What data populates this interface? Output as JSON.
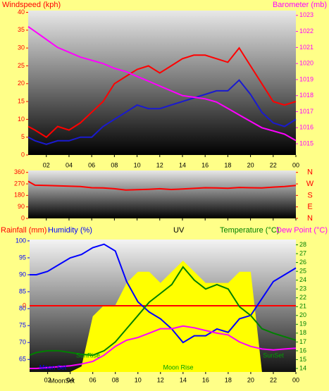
{
  "chart_data": [
    {
      "type": "line",
      "y_label": "Windspeed (kph)",
      "y2_label": "Barometer (mb)",
      "x": [
        0.4,
        1,
        2,
        3,
        4,
        5,
        6,
        7,
        8,
        9,
        10,
        11,
        12,
        13,
        14,
        15,
        16,
        17,
        18,
        19,
        20,
        21,
        22,
        23,
        24
      ],
      "xlim": [
        0.4,
        24
      ],
      "xticks": [
        {
          "value": 2,
          "label": "02"
        },
        {
          "value": 4,
          "label": "04"
        },
        {
          "value": 6,
          "label": "06"
        },
        {
          "value": 8,
          "label": "08"
        },
        10,
        12,
        14,
        16,
        18,
        20,
        22,
        {
          "value": 24,
          "label": "00"
        }
      ],
      "ylim": [
        0,
        40.5
      ],
      "yticks": [
        0,
        5,
        10,
        15,
        20,
        25,
        30,
        35,
        40
      ],
      "y2lim": [
        1014.3,
        1023.3
      ],
      "y2ticks": [
        1015,
        1016,
        1017,
        1018,
        1019,
        1020,
        1021,
        1022,
        1023
      ],
      "series": [
        {
          "color": "#ff0000",
          "axis": "y",
          "values": [
            8,
            7,
            5,
            8,
            7,
            9,
            12,
            15,
            20,
            22,
            24,
            25,
            23,
            25,
            27,
            28,
            28,
            27,
            26,
            30,
            25,
            20,
            15,
            14,
            15
          ]
        },
        {
          "color": "#1a1ad0",
          "axis": "y",
          "values": [
            5,
            4,
            3,
            4,
            4,
            5,
            5,
            8,
            10,
            12,
            14,
            13,
            13,
            14,
            15,
            16,
            17,
            18,
            18,
            21,
            17,
            12,
            9,
            8,
            10
          ]
        },
        {
          "color": "#ff00ff",
          "axis": "y2",
          "values": [
            1022.3,
            1022,
            1021.5,
            1021,
            1020.7,
            1020.4,
            1020.2,
            1020,
            1019.7,
            1019.5,
            1019.2,
            1018.9,
            1018.6,
            1018.3,
            1018,
            1017.9,
            1017.8,
            1017.6,
            1017.2,
            1016.8,
            1016.4,
            1016,
            1015.8,
            1015.6,
            1015.2
          ]
        }
      ]
    },
    {
      "type": "line",
      "x": [
        0.4,
        1,
        2,
        3,
        4,
        5,
        6,
        7,
        8,
        9,
        10,
        11,
        12,
        13,
        14,
        15,
        16,
        17,
        18,
        19,
        20,
        21,
        22,
        23,
        24
      ],
      "xlim": [
        0.4,
        24
      ],
      "xticks": [
        {
          "value": 2,
          "label": "02"
        },
        {
          "value": 4,
          "label": "04"
        },
        {
          "value": 6,
          "label": "06"
        },
        {
          "value": 8,
          "label": "08"
        },
        10,
        12,
        14,
        16,
        18,
        20,
        22,
        {
          "value": 24,
          "label": "00"
        }
      ],
      "ylim": [
        0,
        375
      ],
      "yticks": [
        0,
        90,
        180,
        270,
        360
      ],
      "y2ticks": [
        {
          "value": 360,
          "label": "N"
        },
        {
          "value": 270,
          "label": "W"
        },
        {
          "value": 180,
          "label": "S"
        },
        {
          "value": 90,
          "label": "E"
        },
        {
          "value": 0,
          "label": "N"
        }
      ],
      "series": [
        {
          "color": "#ff0000",
          "axis": "y",
          "values": [
            290,
            260,
            258,
            255,
            252,
            250,
            240,
            238,
            232,
            222,
            225,
            228,
            232,
            226,
            230,
            235,
            240,
            238,
            236,
            242,
            240,
            238,
            245,
            250,
            258
          ]
        }
      ]
    },
    {
      "type": "line",
      "y3_label": "Rainfall (mm)",
      "y_label": "Humidity (%)",
      "uv_label": "UV",
      "y2_label": "Temperature (°C)",
      "y4_label": "Dew Point (°C)",
      "x": [
        0.4,
        1,
        2,
        3,
        4,
        5,
        6,
        7,
        8,
        9,
        10,
        11,
        12,
        13,
        14,
        15,
        16,
        17,
        18,
        19,
        20,
        21,
        22,
        23,
        24
      ],
      "xlim": [
        0.4,
        24
      ],
      "xticks": [
        {
          "value": 2,
          "label": "02"
        },
        {
          "value": 4,
          "label": "04"
        },
        {
          "value": 6,
          "label": "06"
        },
        {
          "value": 8,
          "label": "08"
        },
        10,
        12,
        14,
        16,
        18,
        20,
        22,
        {
          "value": 24,
          "label": "00"
        }
      ],
      "ylim": [
        61.3,
        100.4
      ],
      "yticks": [
        65,
        70,
        75,
        80,
        85,
        90,
        95,
        100
      ],
      "y2lim": [
        13.6,
        28.6
      ],
      "y2ticks": [
        14,
        15,
        16,
        17,
        18,
        19,
        20,
        21,
        22,
        23,
        24,
        25,
        26,
        27,
        28
      ],
      "y3lim": [
        -1,
        1
      ],
      "y3ticks": [
        0
      ],
      "uvlim": [
        0,
        10
      ],
      "annotations": [
        "SunRise",
        "SunSet",
        "Moon Rise",
        "Moon Set",
        "MoonSet"
      ],
      "series": [
        {
          "color": "#ffff00",
          "axis": "uv",
          "fill": true,
          "values": [
            0,
            0,
            0,
            0,
            0,
            0.5,
            5,
            6,
            6,
            8,
            9,
            9,
            8,
            9,
            10,
            9,
            8,
            8,
            8,
            9,
            9,
            0,
            0,
            0,
            0
          ]
        },
        {
          "color": "#ff0000",
          "axis": "y3",
          "values": [
            0,
            0,
            0,
            0,
            0,
            0,
            0,
            0,
            0,
            0,
            0,
            0,
            0,
            0,
            0,
            0,
            0,
            0,
            0,
            0,
            0,
            0,
            0,
            0,
            0
          ]
        },
        {
          "color": "#0000ff",
          "axis": "y",
          "values": [
            90,
            90,
            91,
            93,
            95,
            96,
            98,
            99,
            97,
            88,
            82,
            79,
            77,
            74,
            70,
            72,
            72,
            74,
            73,
            77,
            78,
            83,
            88,
            90,
            92
          ]
        },
        {
          "color": "#008000",
          "axis": "y2",
          "values": [
            15.5,
            15.8,
            16,
            16,
            15.8,
            15.6,
            15.5,
            16,
            17,
            18.5,
            20,
            21.5,
            22.5,
            23.5,
            25.5,
            24,
            23,
            23.5,
            23,
            21,
            20,
            18.5,
            18,
            17.6,
            17.2
          ]
        },
        {
          "color": "#ff00ff",
          "axis": "y2",
          "values": [
            14,
            14,
            14.1,
            14.2,
            14.3,
            14.5,
            14.8,
            15.5,
            16.5,
            17.2,
            17.5,
            18,
            18.5,
            18.5,
            18.8,
            18.6,
            18.3,
            18,
            17.8,
            17,
            16.5,
            16.2,
            16.1,
            16.2,
            16.3
          ]
        }
      ]
    }
  ]
}
